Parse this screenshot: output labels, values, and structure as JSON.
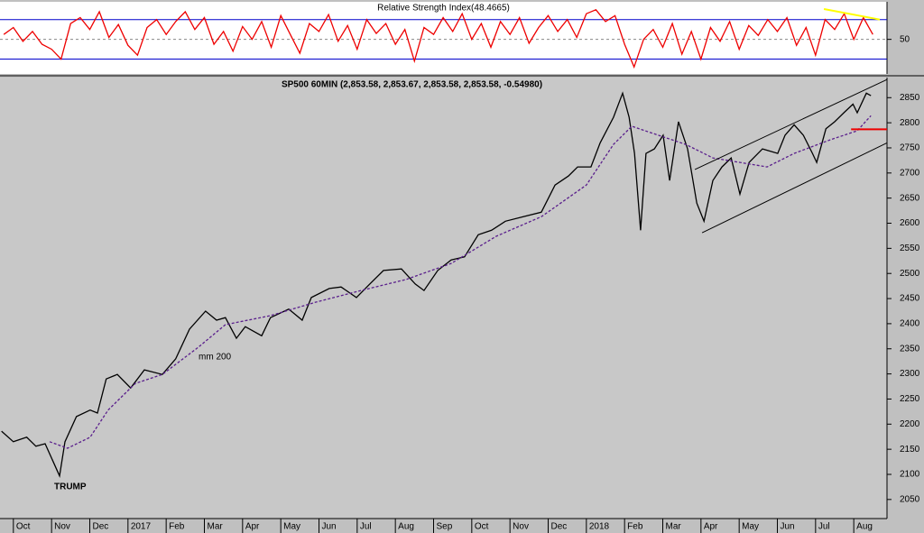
{
  "chart_data": [
    {
      "type": "line",
      "title": "Relative Strength Index(48.4665)",
      "xlim": [
        -0.35,
        22.87
      ],
      "ylim": [
        15,
        88
      ],
      "yticks": [
        50
      ],
      "grid": true,
      "levels": [
        30,
        70
      ],
      "level_color": "#0000cc",
      "series": [
        {
          "color": "#ee0000",
          "x": [
            -0.25,
            0,
            0.25,
            0.5,
            0.75,
            1,
            1.25,
            1.5,
            1.75,
            2,
            2.25,
            2.5,
            2.75,
            3,
            3.25,
            3.5,
            3.75,
            4,
            4.25,
            4.5,
            4.75,
            5,
            5.25,
            5.5,
            5.75,
            6,
            6.25,
            6.5,
            6.75,
            7,
            7.25,
            7.5,
            7.75,
            8,
            8.25,
            8.5,
            8.75,
            9,
            9.25,
            9.5,
            9.75,
            10,
            10.25,
            10.5,
            10.75,
            11,
            11.25,
            11.5,
            11.75,
            12,
            12.25,
            12.5,
            12.75,
            13,
            13.25,
            13.5,
            13.75,
            14,
            14.25,
            14.5,
            14.75,
            15,
            15.25,
            15.5,
            15.75,
            16,
            16.25,
            16.5,
            16.75,
            17,
            17.25,
            17.5,
            17.75,
            18,
            18.25,
            18.5,
            18.75,
            19,
            19.25,
            19.5,
            19.75,
            20,
            20.25,
            20.5,
            20.75,
            21,
            21.25,
            21.5,
            21.75,
            22,
            22.25,
            22.5
          ],
          "values": [
            55,
            62,
            48,
            58,
            45,
            40,
            30,
            66,
            72,
            60,
            78,
            52,
            65,
            44,
            34,
            62,
            70,
            55,
            68,
            78,
            60,
            72,
            45,
            58,
            38,
            63,
            50,
            68,
            42,
            74,
            55,
            36,
            66,
            58,
            75,
            48,
            64,
            40,
            70,
            56,
            66,
            45,
            60,
            28,
            62,
            55,
            72,
            58,
            76,
            50,
            66,
            42,
            68,
            55,
            72,
            46,
            62,
            74,
            58,
            70,
            52,
            76,
            80,
            68,
            74,
            45,
            22,
            50,
            60,
            42,
            66,
            35,
            58,
            30,
            62,
            48,
            68,
            40,
            64,
            54,
            70,
            58,
            72,
            44,
            62,
            34,
            70,
            60,
            76,
            50,
            72,
            55
          ]
        }
      ],
      "lines": [
        {
          "color": "#ffff00",
          "x": [
            21.22,
            22.68
          ],
          "values": [
            80.7,
            70
          ]
        }
      ]
    },
    {
      "type": "line",
      "title": "SP500 60MIN (2,853.58, 2,853.67, 2,853.58, 2,853.58, -0.54980)",
      "xlim": [
        -0.35,
        22.87
      ],
      "ylim": [
        2012,
        2890
      ],
      "grid": false,
      "yticks": [
        2050,
        2100,
        2150,
        2200,
        2250,
        2300,
        2350,
        2400,
        2450,
        2500,
        2550,
        2600,
        2650,
        2700,
        2750,
        2800,
        2850
      ],
      "xticks": [
        {
          "value": 0,
          "label": "Oct"
        },
        {
          "value": 1,
          "label": "Nov"
        },
        {
          "value": 2,
          "label": "Dec"
        },
        {
          "value": 3,
          "label": "2017"
        },
        {
          "value": 4,
          "label": "Feb"
        },
        {
          "value": 5,
          "label": "Mar"
        },
        {
          "value": 6,
          "label": "Apr"
        },
        {
          "value": 7,
          "label": "May"
        },
        {
          "value": 8,
          "label": "Jun"
        },
        {
          "value": 9,
          "label": "Jul"
        },
        {
          "value": 10,
          "label": "Aug"
        },
        {
          "value": 11,
          "label": "Sep"
        },
        {
          "value": 12,
          "label": "Oct"
        },
        {
          "value": 13,
          "label": "Nov"
        },
        {
          "value": 14,
          "label": "Dec"
        },
        {
          "value": 15,
          "label": "2018"
        },
        {
          "value": 16,
          "label": "Feb"
        },
        {
          "value": 17,
          "label": "Mar"
        },
        {
          "value": 18,
          "label": "Apr"
        },
        {
          "value": 19,
          "label": "May"
        },
        {
          "value": 20,
          "label": "Jun"
        },
        {
          "value": 21,
          "label": "Jul"
        },
        {
          "value": 22,
          "label": "Aug"
        }
      ],
      "series": [
        {
          "color": "#000000",
          "x": [
            -0.31,
            0,
            0.35,
            0.59,
            0.83,
            1.02,
            1.21,
            1.35,
            1.65,
            2.01,
            2.2,
            2.43,
            2.72,
            3.07,
            3.43,
            3.9,
            4.25,
            4.61,
            5.03,
            5.32,
            5.55,
            5.84,
            6.07,
            6.5,
            6.73,
            7.21,
            7.56,
            7.8,
            8.27,
            8.58,
            8.98,
            9.33,
            9.69,
            10.16,
            10.52,
            10.75,
            11.11,
            11.46,
            11.81,
            12.17,
            12.52,
            12.88,
            13.35,
            13.82,
            14.18,
            14.53,
            14.77,
            15.12,
            15.36,
            15.71,
            15.95,
            16.12,
            16.26,
            16.42,
            16.56,
            16.78,
            17.01,
            17.18,
            17.41,
            17.65,
            17.89,
            18.08,
            18.31,
            18.55,
            18.79,
            19.02,
            19.26,
            19.61,
            20.01,
            20.2,
            20.44,
            20.68,
            20.92,
            21.03,
            21.27,
            21.5,
            21.74,
            21.98,
            22.09,
            22.33,
            22.45
          ],
          "values": [
            2186,
            2165,
            2174,
            2156,
            2161,
            2129,
            2097,
            2165,
            2215,
            2228,
            2222,
            2290,
            2299,
            2272,
            2308,
            2299,
            2330,
            2389,
            2425,
            2407,
            2412,
            2371,
            2394,
            2376,
            2412,
            2429,
            2407,
            2452,
            2470,
            2473,
            2452,
            2479,
            2506,
            2509,
            2479,
            2466,
            2506,
            2527,
            2533,
            2577,
            2586,
            2604,
            2613,
            2622,
            2676,
            2694,
            2712,
            2712,
            2760,
            2811,
            2859,
            2811,
            2739,
            2586,
            2739,
            2748,
            2775,
            2685,
            2802,
            2748,
            2640,
            2604,
            2685,
            2712,
            2730,
            2658,
            2721,
            2748,
            2739,
            2775,
            2796,
            2775,
            2739,
            2721,
            2788,
            2802,
            2820,
            2837,
            2820,
            2859,
            2854
          ]
        },
        {
          "color": "#5a1f8c",
          "dash": true,
          "x": [
            0.95,
            1.42,
            2.01,
            2.48,
            3.19,
            3.9,
            4.84,
            5.55,
            6.73,
            7.92,
            9.1,
            10.28,
            11.46,
            12.64,
            13.82,
            15.0,
            15.71,
            16.19,
            16.89,
            17.6,
            18.31,
            19.02,
            19.73,
            20.44,
            21.38,
            22.09,
            22.45
          ],
          "values": [
            2165,
            2152,
            2174,
            2228,
            2281,
            2299,
            2353,
            2398,
            2416,
            2443,
            2466,
            2488,
            2520,
            2574,
            2613,
            2676,
            2757,
            2793,
            2775,
            2757,
            2730,
            2721,
            2712,
            2739,
            2766,
            2784,
            2814
          ]
        }
      ],
      "lines": [
        {
          "color": "#000000",
          "x": [
            17.84,
            22.87
          ],
          "values": [
            2707,
            2886
          ]
        },
        {
          "color": "#000000",
          "x": [
            18.03,
            22.87
          ],
          "values": [
            2581,
            2760
          ]
        },
        {
          "color": "#ee0000",
          "x": [
            21.93,
            22.87
          ],
          "values": [
            2787,
            2787
          ]
        }
      ],
      "annotations": [
        "mm 200",
        "TRUMP"
      ]
    }
  ]
}
